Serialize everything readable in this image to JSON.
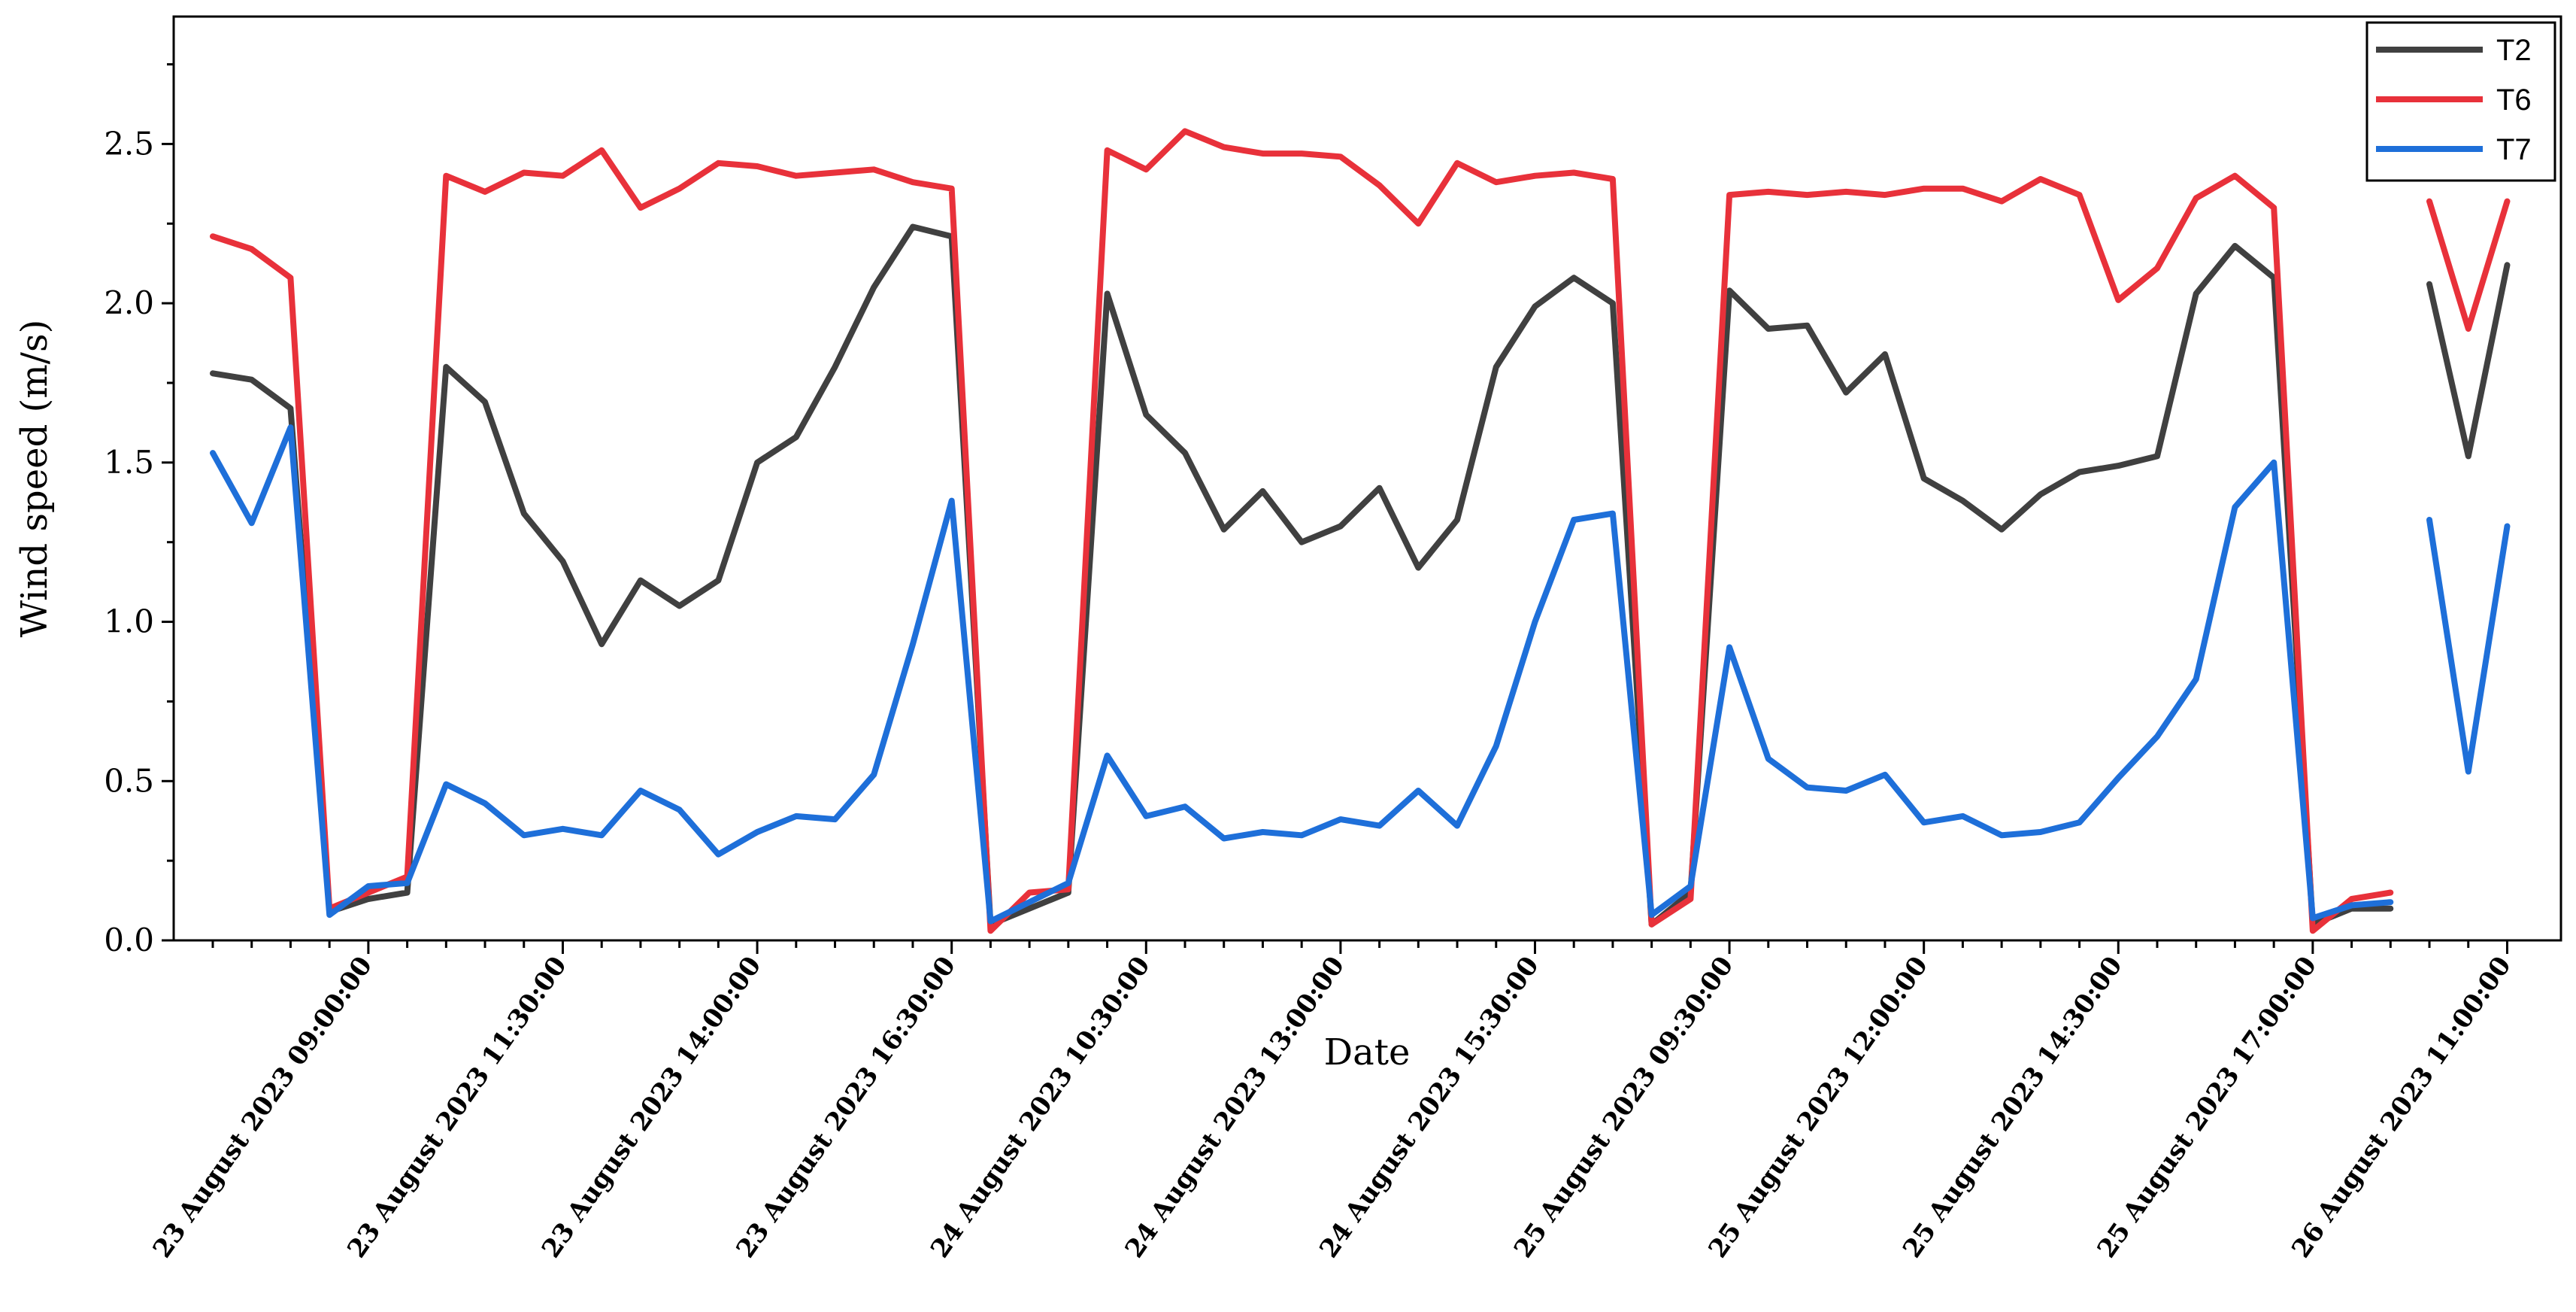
{
  "chart_data": {
    "type": "line",
    "title": "",
    "xlabel": "Date",
    "ylabel": "Wind speed (m/s)",
    "ylim": [
      0,
      2.9
    ],
    "yticks": [
      "0.0",
      "0.5",
      "1.0",
      "1.5",
      "2.0",
      "2.5"
    ],
    "x_ticks": [
      {
        "index": 4,
        "label": "23 August 2023 09:00:00"
      },
      {
        "index": 9,
        "label": "23 August 2023 11:30:00"
      },
      {
        "index": 14,
        "label": "23 August 2023 14:00:00"
      },
      {
        "index": 19,
        "label": "23 August 2023 16:30:00"
      },
      {
        "index": 24,
        "label": "24 August 2023 10:30:00"
      },
      {
        "index": 29,
        "label": "24 August 2023 13:00:00"
      },
      {
        "index": 34,
        "label": "24 August 2023 15:30:00"
      },
      {
        "index": 39,
        "label": "25 August 2023 09:30:00"
      },
      {
        "index": 44,
        "label": "25 August 2023 12:00:00"
      },
      {
        "index": 49,
        "label": "25 August 2023 14:30:00"
      },
      {
        "index": 54,
        "label": "25 August 2023 17:00:00"
      },
      {
        "index": 59,
        "label": "26 August 2023 11:00:00"
      }
    ],
    "n_points": 60,
    "gaps_after_index": [
      56
    ],
    "series": [
      {
        "name": "T2",
        "color": "#404040",
        "values": [
          1.78,
          1.76,
          1.67,
          0.09,
          0.13,
          0.15,
          1.8,
          1.69,
          1.34,
          1.19,
          0.93,
          1.13,
          1.05,
          1.13,
          1.5,
          1.58,
          1.8,
          2.05,
          2.24,
          2.21,
          0.05,
          0.1,
          0.15,
          2.03,
          1.65,
          1.53,
          1.29,
          1.41,
          1.25,
          1.3,
          1.42,
          1.17,
          1.32,
          1.8,
          1.99,
          2.08,
          2.0,
          0.05,
          0.15,
          2.04,
          1.92,
          1.93,
          1.72,
          1.84,
          1.45,
          1.38,
          1.29,
          1.4,
          1.47,
          1.49,
          1.52,
          2.03,
          2.18,
          2.08,
          0.05,
          0.1,
          0.1,
          2.06,
          1.52,
          2.12
        ]
      },
      {
        "name": "T6",
        "color": "#e8313a",
        "values": [
          2.21,
          2.17,
          2.08,
          0.1,
          0.15,
          0.2,
          2.4,
          2.35,
          2.41,
          2.4,
          2.48,
          2.3,
          2.36,
          2.44,
          2.43,
          2.4,
          2.41,
          2.42,
          2.38,
          2.36,
          0.03,
          0.15,
          0.16,
          2.48,
          2.42,
          2.54,
          2.49,
          2.47,
          2.47,
          2.46,
          2.37,
          2.25,
          2.44,
          2.38,
          2.4,
          2.41,
          2.39,
          0.05,
          0.13,
          2.34,
          2.35,
          2.34,
          2.35,
          2.34,
          2.36,
          2.36,
          2.32,
          2.39,
          2.34,
          2.01,
          2.11,
          2.33,
          2.4,
          2.3,
          0.03,
          0.13,
          0.15,
          2.32,
          1.92,
          2.32
        ]
      },
      {
        "name": "T7",
        "color": "#1e6fd9",
        "values": [
          1.53,
          1.31,
          1.61,
          0.08,
          0.17,
          0.18,
          0.49,
          0.43,
          0.33,
          0.35,
          0.33,
          0.47,
          0.41,
          0.27,
          0.34,
          0.39,
          0.38,
          0.52,
          0.93,
          1.38,
          0.06,
          0.12,
          0.18,
          0.58,
          0.39,
          0.42,
          0.32,
          0.34,
          0.33,
          0.38,
          0.36,
          0.47,
          0.36,
          0.61,
          1.0,
          1.32,
          1.34,
          0.08,
          0.17,
          0.92,
          0.57,
          0.48,
          0.47,
          0.52,
          0.37,
          0.39,
          0.33,
          0.34,
          0.37,
          0.51,
          0.64,
          0.82,
          1.36,
          1.5,
          0.07,
          0.11,
          0.12,
          1.32,
          0.53,
          1.3
        ]
      }
    ],
    "legend": {
      "position": "top-right",
      "entries": [
        "T2",
        "T6",
        "T7"
      ]
    }
  }
}
